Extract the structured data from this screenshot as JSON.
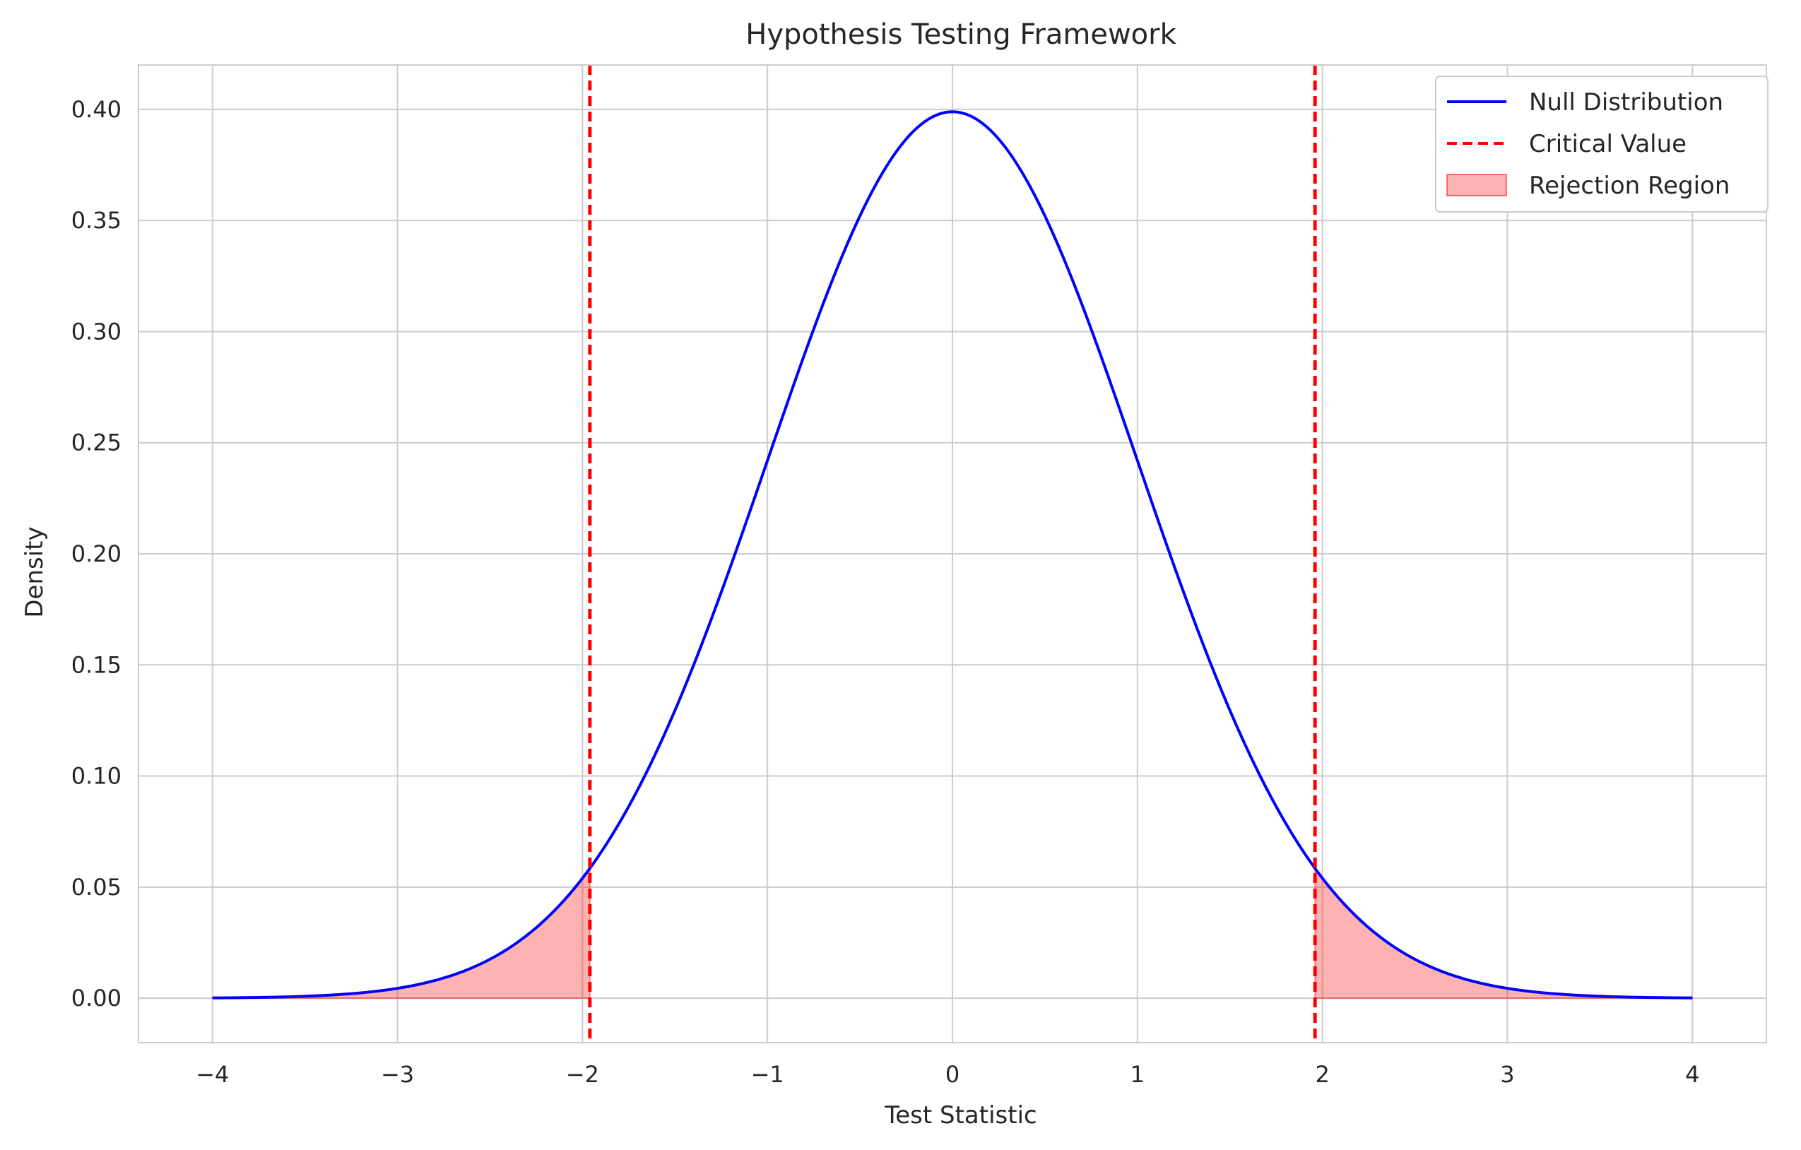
{
  "chart_data": {
    "type": "line",
    "title": "Hypothesis Testing Framework",
    "xlabel": "Test Statistic",
    "ylabel": "Density",
    "xlim": [
      -4.4,
      4.4
    ],
    "ylim": [
      -0.02,
      0.42
    ],
    "x_ticks": [
      -4,
      -3,
      -2,
      -1,
      0,
      1,
      2,
      3,
      4
    ],
    "x_tick_labels": [
      "−4",
      "−3",
      "−2",
      "−1",
      "0",
      "1",
      "2",
      "3",
      "4"
    ],
    "y_ticks": [
      0.0,
      0.05,
      0.1,
      0.15,
      0.2,
      0.25,
      0.3,
      0.35,
      0.4
    ],
    "y_tick_labels": [
      "0.00",
      "0.05",
      "0.10",
      "0.15",
      "0.20",
      "0.25",
      "0.30",
      "0.35",
      "0.40"
    ],
    "grid": true,
    "legend_position": "top-right",
    "series": [
      {
        "name": "Null Distribution",
        "kind": "line",
        "color": "#0000ff",
        "distribution": "standard normal",
        "x_range": [
          -4,
          4
        ],
        "peak": {
          "x": 0,
          "y": 0.399
        }
      },
      {
        "name": "Critical Value",
        "kind": "vertical-dashed-line",
        "color": "#ff0000",
        "x": [
          -1.96,
          1.96
        ]
      },
      {
        "name": "Rejection Region",
        "kind": "filled-area",
        "color": "#ff0000",
        "fill_opacity": 0.3,
        "x_ranges": [
          [
            -4,
            -1.96
          ],
          [
            1.96,
            4
          ]
        ]
      }
    ]
  }
}
